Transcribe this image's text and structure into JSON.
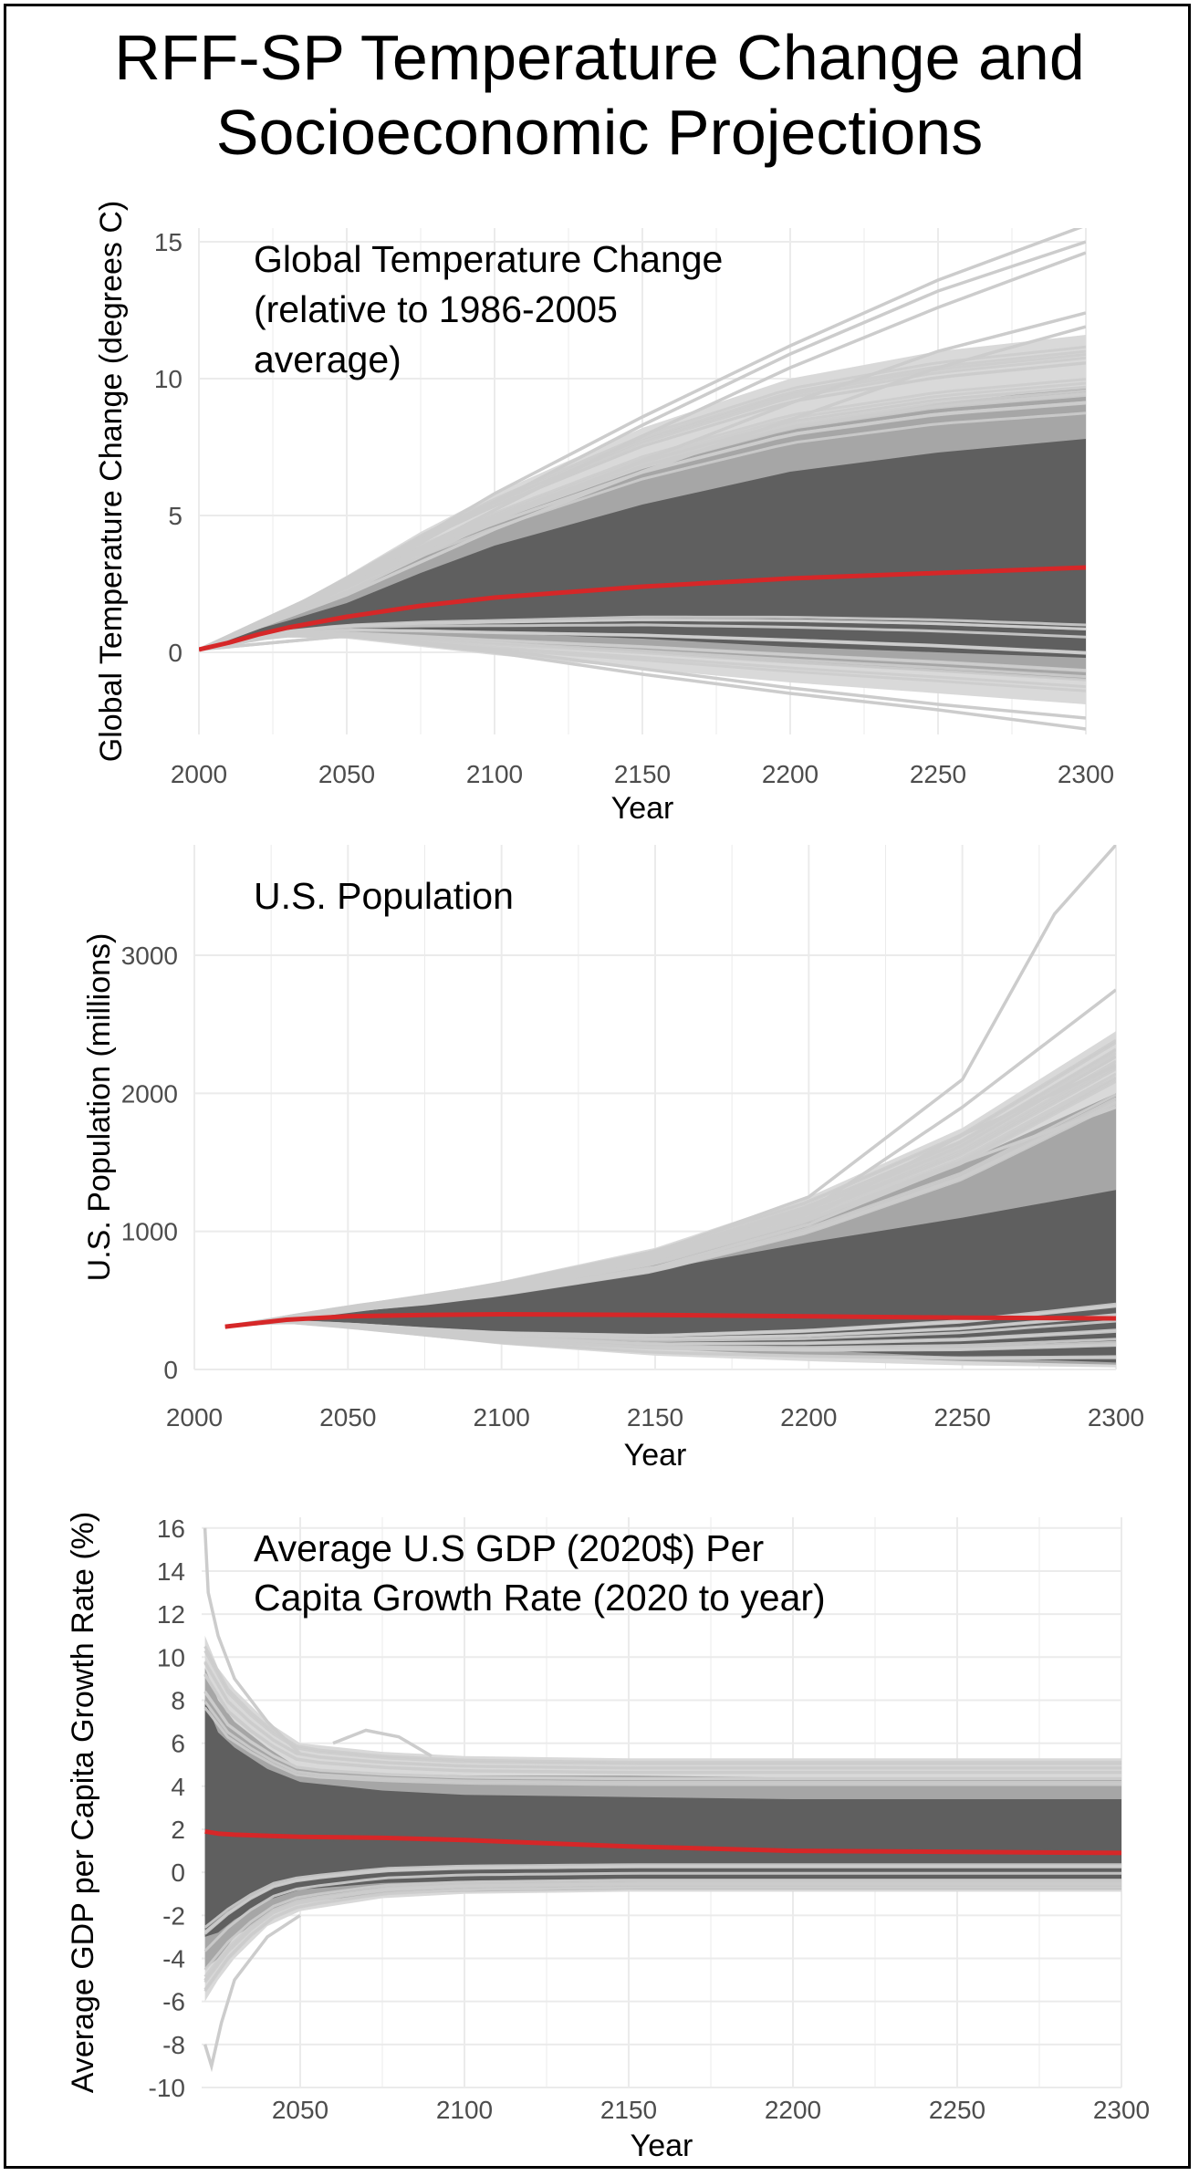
{
  "figure": {
    "title_lines": [
      "RFF-SP Temperature Change and",
      "Socioeconomic Projections"
    ]
  },
  "colors": {
    "median": "#d62728",
    "band_outer": "#d9d9d9",
    "band_mid": "#a6a6a6",
    "band_inner": "#5f5f5f",
    "spaghetti": "#cccccc",
    "grid": "#ebebeb"
  },
  "chart_data": [
    {
      "type": "area",
      "title_lines": [
        "Global Temperature Change",
        "(relative to 1986-2005",
        "average)"
      ],
      "xlabel": "Year",
      "ylabel": "Global Temperature Change (degrees C)",
      "xlim": [
        2000,
        2300
      ],
      "ylim": [
        -3,
        15.5
      ],
      "xticks": [
        2000,
        2050,
        2100,
        2150,
        2200,
        2250,
        2300
      ],
      "yticks": [
        0,
        5,
        10,
        15
      ],
      "grid": true,
      "x": [
        2000,
        2010,
        2020,
        2030,
        2050,
        2075,
        2100,
        2150,
        2200,
        2250,
        2300
      ],
      "median": [
        0.1,
        0.35,
        0.65,
        0.9,
        1.3,
        1.7,
        2.0,
        2.4,
        2.7,
        2.9,
        3.1
      ],
      "bands": [
        {
          "name": "outer",
          "lower": [
            0.1,
            0.25,
            0.45,
            0.55,
            0.5,
            0.2,
            -0.1,
            -0.6,
            -1.1,
            -1.5,
            -1.9
          ],
          "upper": [
            0.1,
            0.55,
            1.1,
            1.6,
            2.8,
            4.4,
            5.8,
            8.2,
            10.0,
            11.0,
            11.6
          ]
        },
        {
          "name": "mid",
          "lower": [
            0.1,
            0.3,
            0.5,
            0.65,
            0.7,
            0.55,
            0.4,
            0.0,
            -0.4,
            -0.7,
            -1.0
          ],
          "upper": [
            0.1,
            0.5,
            0.95,
            1.3,
            2.1,
            3.5,
            4.8,
            6.7,
            8.2,
            9.1,
            9.7
          ]
        },
        {
          "name": "inner",
          "lower": [
            0.1,
            0.3,
            0.55,
            0.7,
            0.8,
            0.75,
            0.7,
            0.5,
            0.2,
            0.0,
            -0.2
          ],
          "upper": [
            0.1,
            0.45,
            0.85,
            1.15,
            1.8,
            2.9,
            3.9,
            5.4,
            6.6,
            7.3,
            7.8
          ]
        }
      ],
      "extreme_lines": [
        {
          "x": [
            2000,
            2050,
            2100,
            2150,
            2200,
            2250,
            2300
          ],
          "y": [
            0.1,
            2.6,
            5.8,
            8.6,
            11.2,
            13.6,
            15.6
          ]
        },
        {
          "x": [
            2000,
            2050,
            2100,
            2150,
            2200,
            2250,
            2300
          ],
          "y": [
            0.1,
            2.5,
            5.5,
            8.3,
            10.9,
            13.2,
            15.0
          ]
        },
        {
          "x": [
            2000,
            2050,
            2100,
            2150,
            2200,
            2250,
            2300
          ],
          "y": [
            0.1,
            2.4,
            5.2,
            7.9,
            10.4,
            12.6,
            14.6
          ]
        },
        {
          "x": [
            2000,
            2050,
            2100,
            2150,
            2200,
            2250,
            2300
          ],
          "y": [
            0.1,
            2.2,
            4.8,
            7.0,
            9.1,
            11.0,
            12.4
          ]
        },
        {
          "x": [
            2000,
            2050,
            2100,
            2150,
            2200,
            2250,
            2300
          ],
          "y": [
            0.1,
            2.1,
            4.5,
            6.6,
            8.5,
            10.4,
            11.9
          ]
        },
        {
          "x": [
            2000,
            2050,
            2100,
            2150,
            2200,
            2250,
            2300
          ],
          "y": [
            0.1,
            0.6,
            0.0,
            -0.8,
            -1.5,
            -2.1,
            -2.8
          ]
        },
        {
          "x": [
            2000,
            2050,
            2100,
            2150,
            2200,
            2250,
            2300
          ],
          "y": [
            0.1,
            0.6,
            0.1,
            -0.6,
            -1.3,
            -1.9,
            -2.4
          ]
        }
      ]
    },
    {
      "type": "area",
      "title_lines": [
        "U.S. Population"
      ],
      "xlabel": "Year",
      "ylabel": "U.S. Population (millions)",
      "xlim": [
        2000,
        2300
      ],
      "ylim": [
        0,
        3800
      ],
      "xticks": [
        2000,
        2050,
        2100,
        2150,
        2200,
        2250,
        2300
      ],
      "yticks": [
        0,
        1000,
        2000,
        3000
      ],
      "grid": true,
      "x": [
        2010,
        2020,
        2030,
        2050,
        2075,
        2100,
        2150,
        2200,
        2250,
        2300
      ],
      "median": [
        310,
        335,
        360,
        385,
        395,
        400,
        395,
        385,
        375,
        370
      ],
      "bands": [
        {
          "name": "outer",
          "lower": [
            310,
            330,
            340,
            300,
            240,
            180,
            100,
            60,
            30,
            15
          ],
          "upper": [
            310,
            340,
            385,
            460,
            540,
            640,
            880,
            1250,
            1750,
            2450
          ]
        },
        {
          "name": "mid",
          "lower": [
            310,
            332,
            345,
            320,
            270,
            220,
            150,
            100,
            60,
            35
          ],
          "upper": [
            310,
            338,
            375,
            430,
            500,
            580,
            790,
            1080,
            1500,
            2000
          ]
        },
        {
          "name": "inner",
          "lower": [
            310,
            333,
            350,
            335,
            295,
            255,
            190,
            140,
            90,
            50
          ],
          "upper": [
            310,
            336,
            368,
            415,
            470,
            540,
            720,
            920,
            1100,
            1300
          ]
        }
      ],
      "extreme_lines": [
        {
          "x": [
            2010,
            2050,
            2100,
            2150,
            2200,
            2250,
            2280,
            2300
          ],
          "y": [
            310,
            450,
            620,
            850,
            1250,
            2100,
            3300,
            3800
          ]
        },
        {
          "x": [
            2010,
            2050,
            2100,
            2150,
            2200,
            2250,
            2300
          ],
          "y": [
            310,
            440,
            600,
            800,
            1150,
            1900,
            2750
          ]
        },
        {
          "x": [
            2010,
            2050,
            2100,
            2150,
            2200,
            2250,
            2300
          ],
          "y": [
            310,
            430,
            580,
            770,
            1100,
            1700,
            2200
          ]
        },
        {
          "x": [
            2010,
            2050,
            2100,
            2150,
            2200,
            2250,
            2300
          ],
          "y": [
            310,
            420,
            560,
            740,
            1050,
            1500,
            1900
          ]
        }
      ]
    },
    {
      "type": "area",
      "title_lines": [
        "Average U.S GDP (2020$) Per",
        "Capita Growth Rate (2020 to year)"
      ],
      "xlabel": "Year",
      "ylabel": "Average GDP per Capita Growth Rate (%)",
      "xlim": [
        2020,
        2300
      ],
      "ylim": [
        -10,
        16.5
      ],
      "xticks": [
        2050,
        2100,
        2150,
        2200,
        2250,
        2300
      ],
      "yticks": [
        16,
        14,
        12,
        10,
        8,
        6,
        4,
        2,
        0,
        -2,
        -4,
        -6,
        -8,
        -10
      ],
      "grid": true,
      "x": [
        2021,
        2025,
        2030,
        2040,
        2050,
        2075,
        2100,
        2150,
        2200,
        2250,
        2300
      ],
      "median": [
        1.9,
        1.8,
        1.75,
        1.7,
        1.65,
        1.6,
        1.5,
        1.2,
        1.0,
        0.95,
        0.9
      ],
      "bands": [
        {
          "name": "outer",
          "lower": [
            -6.0,
            -5.0,
            -4.0,
            -2.5,
            -1.8,
            -1.2,
            -1.0,
            -0.9,
            -0.9,
            -0.9,
            -0.9
          ],
          "upper": [
            11.0,
            9.5,
            8.5,
            7.0,
            6.0,
            5.6,
            5.4,
            5.3,
            5.3,
            5.3,
            5.3
          ]
        },
        {
          "name": "mid",
          "lower": [
            -4.5,
            -4.0,
            -3.0,
            -2.0,
            -1.4,
            -1.0,
            -0.9,
            -0.8,
            -0.8,
            -0.8,
            -0.8
          ],
          "upper": [
            9.5,
            8.0,
            7.0,
            5.8,
            4.8,
            4.6,
            4.5,
            4.5,
            4.4,
            4.4,
            4.4
          ]
        },
        {
          "name": "inner",
          "lower": [
            -3.0,
            -2.8,
            -2.2,
            -1.3,
            -0.8,
            -0.5,
            -0.4,
            -0.3,
            -0.3,
            -0.3,
            -0.3
          ],
          "upper": [
            8.0,
            6.5,
            5.8,
            4.8,
            4.2,
            3.8,
            3.6,
            3.5,
            3.4,
            3.4,
            3.4
          ]
        }
      ],
      "extreme_lines": [
        {
          "x": [
            2021,
            2022,
            2025,
            2030,
            2035,
            2040,
            2050
          ],
          "y": [
            16.0,
            13.0,
            11.0,
            9.0,
            8.0,
            7.0,
            5.5
          ]
        },
        {
          "x": [
            2021,
            2023,
            2026,
            2030,
            2035,
            2040,
            2050
          ],
          "y": [
            -8.0,
            -9.0,
            -7.0,
            -5.0,
            -4.0,
            -3.0,
            -2.0
          ]
        },
        {
          "x": [
            2060,
            2070,
            2080,
            2090
          ],
          "y": [
            6.0,
            6.6,
            6.3,
            5.4
          ]
        }
      ]
    }
  ]
}
